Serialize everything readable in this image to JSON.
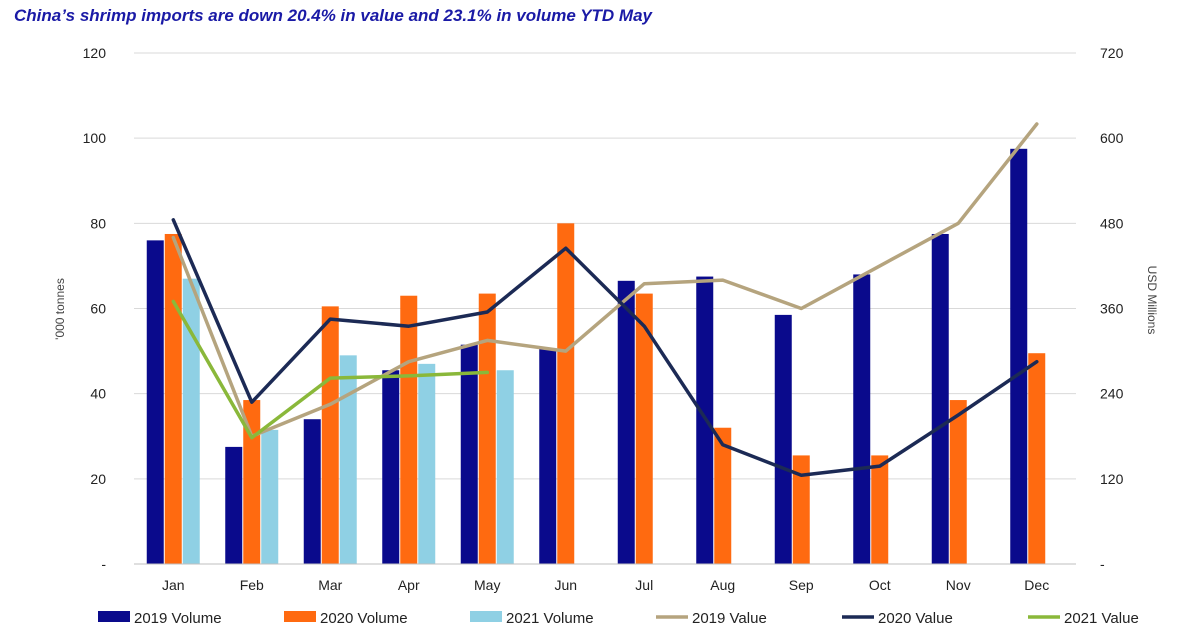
{
  "title": "China’s shrimp imports are down 20.4% in value and 23.1% in volume YTD May",
  "chart_data": {
    "type": "bar",
    "combo": "grouped bars (volume, left axis) with lines (value, right axis)",
    "categories": [
      "Jan",
      "Feb",
      "Mar",
      "Apr",
      "May",
      "Jun",
      "Jul",
      "Aug",
      "Sep",
      "Oct",
      "Nov",
      "Dec"
    ],
    "ylabel": "'000 tonnes",
    "y2label": "USD Millions",
    "ylim": [
      0,
      120
    ],
    "y2lim": [
      0,
      720
    ],
    "y_ticks": [
      "-",
      "20",
      "40",
      "60",
      "80",
      "100",
      "120"
    ],
    "y2_ticks": [
      "-",
      "120",
      "240",
      "360",
      "480",
      "600",
      "720"
    ],
    "grid": "horizontal",
    "legend_position": "bottom",
    "bar_series": [
      {
        "name": "2019 Volume",
        "color": "#0a0a8c",
        "values": [
          76.0,
          27.5,
          34.0,
          45.5,
          51.5,
          50.5,
          66.5,
          67.5,
          58.5,
          68.0,
          77.5,
          97.5
        ]
      },
      {
        "name": "2020 Volume",
        "color": "#ff6a10",
        "values": [
          77.5,
          38.5,
          60.5,
          63.0,
          63.5,
          80.0,
          63.5,
          32.0,
          25.5,
          25.5,
          38.5,
          49.5
        ]
      },
      {
        "name": "2021 Volume",
        "color": "#8fd0e4",
        "values": [
          67.0,
          31.5,
          49.0,
          47.0,
          45.5,
          null,
          null,
          null,
          null,
          null,
          null,
          null
        ]
      }
    ],
    "line_series": [
      {
        "name": "2019 Value",
        "color": "#b5a47e",
        "values": [
          460,
          180,
          225,
          285,
          315,
          300,
          395,
          400,
          360,
          420,
          480,
          620
        ]
      },
      {
        "name": "2020 Value",
        "color": "#1c2a55",
        "values": [
          485,
          228,
          345,
          335,
          355,
          445,
          335,
          168,
          125,
          138,
          210,
          285
        ]
      },
      {
        "name": "2021 Value",
        "color": "#8ab83a",
        "values": [
          370,
          178,
          262,
          265,
          270,
          null,
          null,
          null,
          null,
          null,
          null,
          null
        ]
      }
    ]
  }
}
